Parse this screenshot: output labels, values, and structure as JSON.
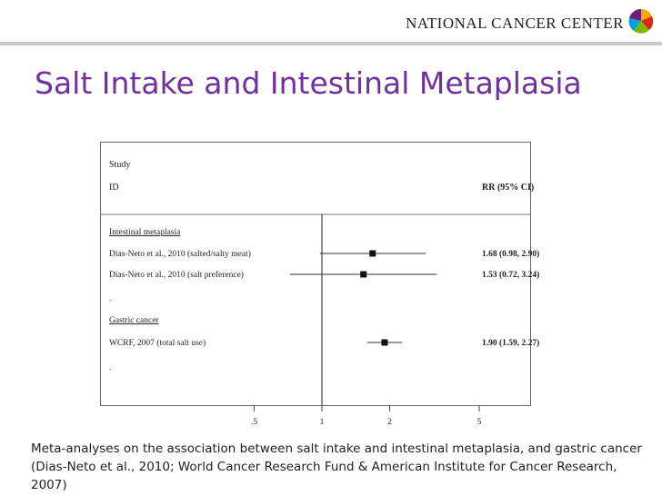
{
  "header": {
    "org_name": "NATIONAL CANCER CENTER",
    "logo_icon": "pinwheel-logo-icon"
  },
  "slide": {
    "title": "Salt Intake and Intestinal Metaplasia",
    "caption": "Meta-analyses on the association between salt intake and intestinal metaplasia, and gastric cancer (Dias-Neto et al., 2010; World Cancer Research Fund & American Institute for Cancer Research, 2007)"
  },
  "chart_data": {
    "type": "forest",
    "header_left": [
      "Study",
      "ID"
    ],
    "header_right": "RR (95% CI)",
    "scale": "log",
    "null_line": 1,
    "x_ticks": [
      {
        "value": 0.5,
        "label": ".5"
      },
      {
        "value": 1,
        "label": "1"
      },
      {
        "value": 2,
        "label": "2"
      },
      {
        "value": 5,
        "label": "5"
      }
    ],
    "xlim": [
      0.2,
      10
    ],
    "rows": [
      {
        "kind": "group",
        "label": "Intestinal metaplasia"
      },
      {
        "kind": "study",
        "label": "Dias-Neto et al., 2010 (salted/salty meat)",
        "rr": 1.68,
        "lo": 0.98,
        "hi": 2.9,
        "rr_text": "1.68 (0.98, 2.90)"
      },
      {
        "kind": "study",
        "label": "Dias-Neto et al., 2010 (salt preference)",
        "rr": 1.53,
        "lo": 0.72,
        "hi": 3.24,
        "rr_text": "1.53 (0.72, 3.24)"
      },
      {
        "kind": "spacer",
        "label": "."
      },
      {
        "kind": "group",
        "label": "Gastric cancer"
      },
      {
        "kind": "study",
        "label": "WCRF, 2007 (total salt use)",
        "rr": 1.9,
        "lo": 1.59,
        "hi": 2.27,
        "rr_text": "1.90 (1.59, 2.27)"
      },
      {
        "kind": "spacer",
        "label": "."
      }
    ]
  }
}
